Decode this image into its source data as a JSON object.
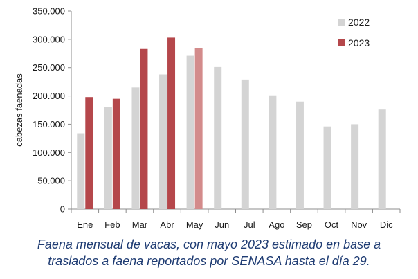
{
  "chart_data": {
    "type": "bar",
    "categories": [
      "Ene",
      "Feb",
      "Mar",
      "Abr",
      "May",
      "Jun",
      "Jul",
      "Ago",
      "Sep",
      "Oct",
      "Nov",
      "Dic"
    ],
    "series": [
      {
        "name": "2022",
        "color": "#d4d4d4",
        "values": [
          134000,
          180000,
          215000,
          238000,
          271000,
          251000,
          229000,
          201000,
          190000,
          146000,
          150000,
          176000
        ]
      },
      {
        "name": "2023",
        "color": "#b5474b",
        "estimated_color": "#d38b8b",
        "values": [
          198000,
          195000,
          283000,
          303000,
          284000,
          null,
          null,
          null,
          null,
          null,
          null,
          null
        ],
        "estimated": [
          false,
          false,
          false,
          false,
          true,
          false,
          false,
          false,
          false,
          false,
          false,
          false
        ]
      }
    ],
    "ylabel": "cabezas faenadas",
    "ylim": [
      0,
      350000
    ],
    "yticks": [
      "0",
      "50.000",
      "100.000",
      "150.000",
      "200.000",
      "250.000",
      "300.000",
      "350.000"
    ],
    "grid": false,
    "legend_position": "top-right"
  },
  "caption": {
    "line1": "Faena mensual de vacas, con mayo 2023 estimado en base a",
    "line2": "traslados a faena reportados por SENASA hasta el día 29."
  }
}
